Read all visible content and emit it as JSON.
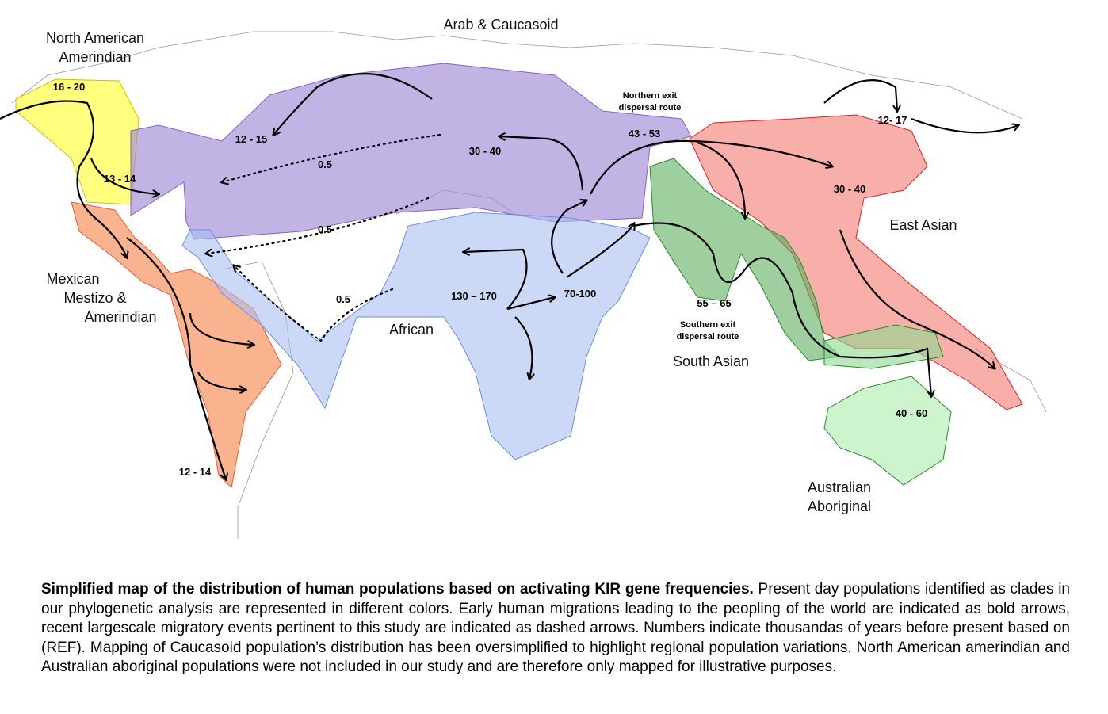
{
  "map": {
    "regions": [
      {
        "lines": [
          "North American",
          "Amerindian"
        ]
      },
      {
        "lines": [
          "Arab & Caucasoid"
        ]
      },
      {
        "lines": [
          "Mexican",
          "Mestizo &",
          "Amerindian"
        ]
      },
      {
        "lines": [
          "African"
        ]
      },
      {
        "lines": [
          "South Asian"
        ]
      },
      {
        "lines": [
          "East Asian"
        ]
      },
      {
        "lines": [
          "Australian",
          "Aboriginal"
        ]
      }
    ],
    "routes": [
      {
        "lines": [
          "Northern exit",
          "dispersal route"
        ]
      },
      {
        "lines": [
          "Southern exit",
          "dispersal route"
        ]
      }
    ],
    "dates": [
      "16 - 20",
      "13 - 14",
      "12 - 15",
      "0.5",
      "0.5",
      "0.5",
      "30 - 40",
      "43 - 53",
      "12- 17",
      "30 - 40",
      "130 – 170",
      "70-100",
      "55 – 65",
      "40 - 60",
      "12 - 14"
    ]
  },
  "caption": {
    "bold": "Simplified map of the distribution of human populations based on activating KIR gene frequencies.",
    "text": " Present day populations identified as clades in our phylogenetic analysis are represented in different colors. Early human migrations leading to the peopling of the world are indicated as bold arrows, recent largescale migratory events pertinent to this study are indicated as dashed arrows. Numbers indicate thousandas of years before present based on (REF). Mapping of Caucasoid population’s distribution has been oversimplified to highlight regional population variations. North American amerindian and Australian aboriginal populations were not included in our study and are therefore only mapped for illustrative purposes."
  }
}
